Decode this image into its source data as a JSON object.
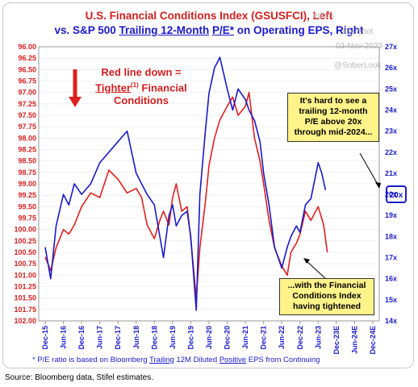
{
  "header": {
    "title_line1": "U.S. Financial Conditions Index (GSUSFCI), Left",
    "title_line2_pre": "vs. S&P 500 ",
    "title_line2_u1": "Trailing 12-Month",
    "title_line2_mid": " ",
    "title_line2_u2": "P/E*",
    "title_line2_post": " on Operating EPS, Right"
  },
  "watermark": {
    "line1": "ed on",
    "line2": "aily Shot",
    "date": "03-Nov-2023",
    "handle": "@SoberLook"
  },
  "annotation_red": {
    "line1": "Red line down =",
    "line2_u": "Tighter",
    "line2_sup": "(1)",
    "line2_post": " Financial",
    "line3": "Conditions"
  },
  "box_top": {
    "line1": "It's hard to see a",
    "line2": "trailing 12-month",
    "line3": "P/E above 20x",
    "line4": "through mid-2024..."
  },
  "box_bottom": {
    "line1": "...with the Financial",
    "line2": "Conditions Index",
    "line3": "having tightened"
  },
  "value_box": "20x",
  "footnote": {
    "pre": "* P/E ratio is based on Bloomberg ",
    "u1": "Trailing",
    "mid": " 12M Diluted ",
    "u2": "Positive",
    "post": " EPS from Continuing"
  },
  "source": "Source: Bloomberg data, Stifel estimates.",
  "chart_data": {
    "type": "line",
    "y_left": {
      "ticks": [
        "96.00",
        "96.25",
        "96.50",
        "96.75",
        "97.00",
        "97.25",
        "97.50",
        "97.75",
        "98.00",
        "98.25",
        "98.50",
        "98.75",
        "99.00",
        "99.25",
        "99.50",
        "99.75",
        "100.00",
        "100.25",
        "100.50",
        "100.75",
        "101.00",
        "101.25",
        "101.50",
        "101.75",
        "102.00"
      ],
      "range": [
        102.0,
        96.0
      ],
      "inverted": true
    },
    "y_right": {
      "ticks": [
        "27x",
        "26x",
        "25x",
        "24x",
        "23x",
        "22x",
        "21x",
        "20x",
        "19x",
        "18x",
        "17x",
        "16x",
        "15x",
        "14x"
      ],
      "range": [
        14,
        27
      ]
    },
    "x_ticks": [
      "Dec-15",
      "Jun-16",
      "Dec-16",
      "Jun-17",
      "Dec-17",
      "Jun-18",
      "Dec-18",
      "Jun-19",
      "Dec-19",
      "Jun-20",
      "Dec-20",
      "Jun-21",
      "Dec-21",
      "Jun-22",
      "Dec-22",
      "Jun-23",
      "Dec-23E",
      "Jun-24E",
      "Dec-24E"
    ],
    "series": [
      {
        "name": "GSUSFCI",
        "axis": "left",
        "color": "#e02020",
        "x": [
          0,
          0.3,
          0.6,
          1,
          1.3,
          1.6,
          2,
          2.5,
          3,
          3.5,
          4,
          4.5,
          5,
          5.3,
          5.6,
          6,
          6.3,
          6.5,
          6.8,
          7,
          7.2,
          7.5,
          7.8,
          8,
          8.3,
          8.5,
          8.8,
          9,
          9.3,
          9.6,
          10,
          10.3,
          10.6,
          11,
          11.2,
          11.5,
          11.8,
          12,
          12.3,
          12.6,
          13,
          13.3,
          13.5,
          13.8,
          14,
          14.3,
          14.6,
          15,
          15.3,
          15.5
        ],
        "y": [
          100.6,
          100.9,
          100.4,
          100.0,
          100.1,
          99.9,
          99.5,
          99.2,
          99.3,
          98.7,
          98.9,
          99.2,
          99.1,
          99.3,
          99.9,
          100.2,
          99.8,
          99.6,
          99.9,
          99.3,
          99.0,
          99.6,
          99.5,
          100.2,
          101.5,
          100.4,
          99.4,
          98.6,
          98.0,
          97.6,
          97.3,
          97.1,
          97.5,
          97.3,
          97.0,
          98.0,
          98.5,
          99.0,
          99.8,
          100.4,
          100.8,
          101.0,
          100.5,
          100.3,
          100.1,
          99.6,
          99.8,
          99.5,
          99.9,
          100.5
        ]
      },
      {
        "name": "S&P 500 P/E",
        "axis": "right",
        "color": "#1a1ac8",
        "x": [
          0,
          0.3,
          0.6,
          1,
          1.3,
          1.6,
          2,
          2.5,
          3,
          3.5,
          4,
          4.5,
          5,
          5.3,
          5.6,
          6,
          6.3,
          6.5,
          6.8,
          7,
          7.2,
          7.5,
          7.8,
          8,
          8.3,
          8.5,
          8.8,
          9,
          9.3,
          9.6,
          10,
          10.3,
          10.6,
          11,
          11.2,
          11.5,
          11.8,
          12,
          12.3,
          12.6,
          13,
          13.3,
          13.5,
          13.8,
          14,
          14.3,
          14.6,
          15,
          15.2,
          15.4
        ],
        "y": [
          17.5,
          16.0,
          18.5,
          20.0,
          19.5,
          20.5,
          20.0,
          20.5,
          21.5,
          22.0,
          22.5,
          23.0,
          21.0,
          20.5,
          20.0,
          19.5,
          18.0,
          17.0,
          19.0,
          19.5,
          18.5,
          19.0,
          19.2,
          18.0,
          14.5,
          20.0,
          23.0,
          24.8,
          26.0,
          26.5,
          25.0,
          24.0,
          25.0,
          24.5,
          24.0,
          23.5,
          22.5,
          21.0,
          19.5,
          17.5,
          16.5,
          17.5,
          18.0,
          18.5,
          18.2,
          19.5,
          19.8,
          21.5,
          21.0,
          20.2
        ]
      }
    ]
  }
}
